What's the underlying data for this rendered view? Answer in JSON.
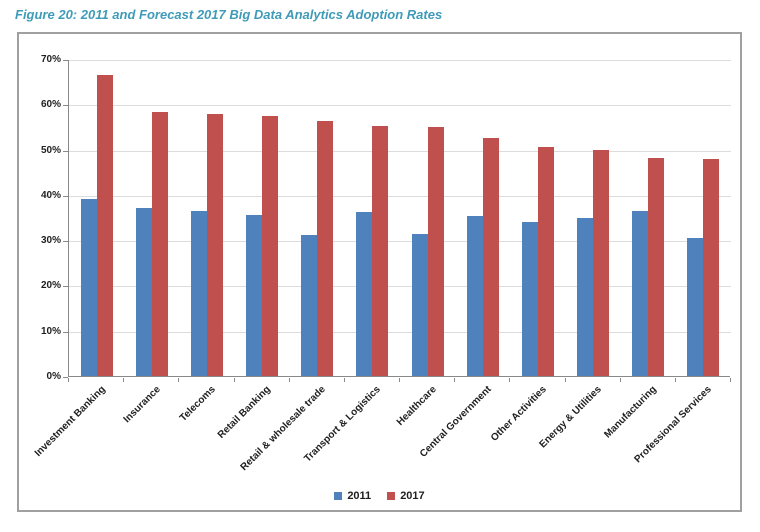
{
  "figure": {
    "title": "Figure 20: 2011 and Forecast 2017 Big Data Analytics Adoption Rates",
    "title_color": "#3F9BB8"
  },
  "chart_data": {
    "type": "bar",
    "title": "2011 and Forecast 2017 Big Data Analytics Adoption Rates",
    "categories": [
      "Investment Banking",
      "Insurance",
      "Telecoms",
      "Retail Banking",
      "Retail & wholesale trade",
      "Transport & Logistics",
      "Healthcare",
      "Central Government",
      "Other Activities",
      "Energy & Utilities",
      "Manufacturing",
      "Professional Services"
    ],
    "series": [
      {
        "name": "2011",
        "color": "#4F81BD",
        "values": [
          39,
          37,
          36.5,
          35.6,
          31.2,
          36.2,
          31.3,
          35.3,
          34,
          34.8,
          36.5,
          30.4
        ]
      },
      {
        "name": "2017",
        "color": "#C0504D",
        "values": [
          66.5,
          58.3,
          57.9,
          57.5,
          56.3,
          55.2,
          54.9,
          52.6,
          50.5,
          49.8,
          48.2,
          48
        ]
      }
    ],
    "xlabel": "",
    "ylabel": "",
    "ylim": [
      0,
      70
    ],
    "ytick_step": 10,
    "ytick_labels": [
      "0%",
      "10%",
      "20%",
      "30%",
      "40%",
      "50%",
      "60%",
      "70%"
    ],
    "grid": true,
    "legend_position": "bottom",
    "colors": {
      "gridline": "#DCDCDC",
      "axis": "#898989",
      "text": "#1F1F1F",
      "box_border": "#A0A0A0"
    }
  }
}
